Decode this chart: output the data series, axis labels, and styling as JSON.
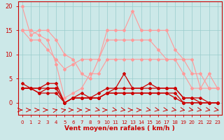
{
  "x": [
    0,
    1,
    2,
    3,
    4,
    5,
    6,
    7,
    8,
    9,
    10,
    11,
    12,
    13,
    14,
    15,
    16,
    17,
    18,
    19,
    20,
    21,
    22,
    23
  ],
  "series": [
    {
      "y": [
        20,
        14,
        15,
        15,
        13,
        10,
        9,
        6,
        5,
        9,
        15,
        15,
        15,
        19,
        15,
        15,
        15,
        15,
        11,
        9,
        6,
        6,
        3,
        3
      ],
      "color": "#ff9999",
      "lw": 0.8,
      "marker": "D",
      "ms": 2.0
    },
    {
      "y": [
        15,
        15,
        14,
        13,
        8,
        1,
        2,
        3,
        6,
        6,
        9,
        9,
        9,
        9,
        9,
        9,
        9,
        9,
        9,
        9,
        9,
        3,
        3,
        3
      ],
      "color": "#ff9999",
      "lw": 0.8,
      "marker": "D",
      "ms": 2.0
    },
    {
      "y": [
        15,
        13,
        13,
        11,
        9,
        7,
        8,
        9,
        9,
        9,
        13,
        13,
        13,
        13,
        13,
        13,
        11,
        9,
        9,
        6,
        3,
        3,
        6,
        3
      ],
      "color": "#ff9999",
      "lw": 0.8,
      "marker": "D",
      "ms": 2.0
    },
    {
      "y": [
        4,
        3,
        3,
        4,
        4,
        0,
        1,
        2,
        1,
        2,
        3,
        3,
        6,
        3,
        3,
        4,
        3,
        3,
        3,
        1,
        1,
        1,
        0,
        0
      ],
      "color": "#cc0000",
      "lw": 0.9,
      "marker": "D",
      "ms": 2.0
    },
    {
      "y": [
        3,
        3,
        2,
        3,
        3,
        0,
        1,
        1,
        1,
        1,
        2,
        3,
        3,
        3,
        3,
        3,
        3,
        3,
        3,
        1,
        1,
        0,
        0,
        0
      ],
      "color": "#cc0000",
      "lw": 0.9,
      "marker": "D",
      "ms": 2.0
    },
    {
      "y": [
        3,
        3,
        2,
        2,
        2,
        0,
        1,
        1,
        1,
        1,
        2,
        2,
        2,
        2,
        2,
        2,
        2,
        2,
        2,
        0,
        0,
        0,
        0,
        0
      ],
      "color": "#cc0000",
      "lw": 0.9,
      "marker": "D",
      "ms": 2.0
    },
    {
      "y": [
        3,
        3,
        3,
        3,
        3,
        0,
        1,
        1,
        1,
        1,
        2,
        2,
        2,
        2,
        2,
        2,
        2,
        2,
        1,
        0,
        0,
        0,
        0,
        0
      ],
      "color": "#cc0000",
      "lw": 0.9,
      "marker": "D",
      "ms": 2.0
    }
  ],
  "bg_color": "#cce8e8",
  "grid_color": "#99cccc",
  "xlabel": "Vent moyen/en rafales ( km/h )",
  "ylim": [
    -2.5,
    21
  ],
  "xlim": [
    -0.5,
    23.5
  ],
  "yticks": [
    0,
    5,
    10,
    15,
    20
  ],
  "xticks": [
    0,
    1,
    2,
    3,
    4,
    5,
    6,
    7,
    8,
    9,
    10,
    11,
    12,
    13,
    14,
    15,
    16,
    17,
    18,
    19,
    20,
    21,
    22,
    23
  ],
  "tick_color": "#cc0000",
  "label_color": "#cc0000",
  "arrow_color": "#cc0000",
  "arrow_directions": [
    0,
    0,
    0,
    0,
    45,
    45,
    0,
    0,
    0,
    315,
    0,
    315,
    315,
    0,
    0,
    315,
    315,
    315,
    315,
    315,
    315,
    315,
    315,
    315
  ]
}
